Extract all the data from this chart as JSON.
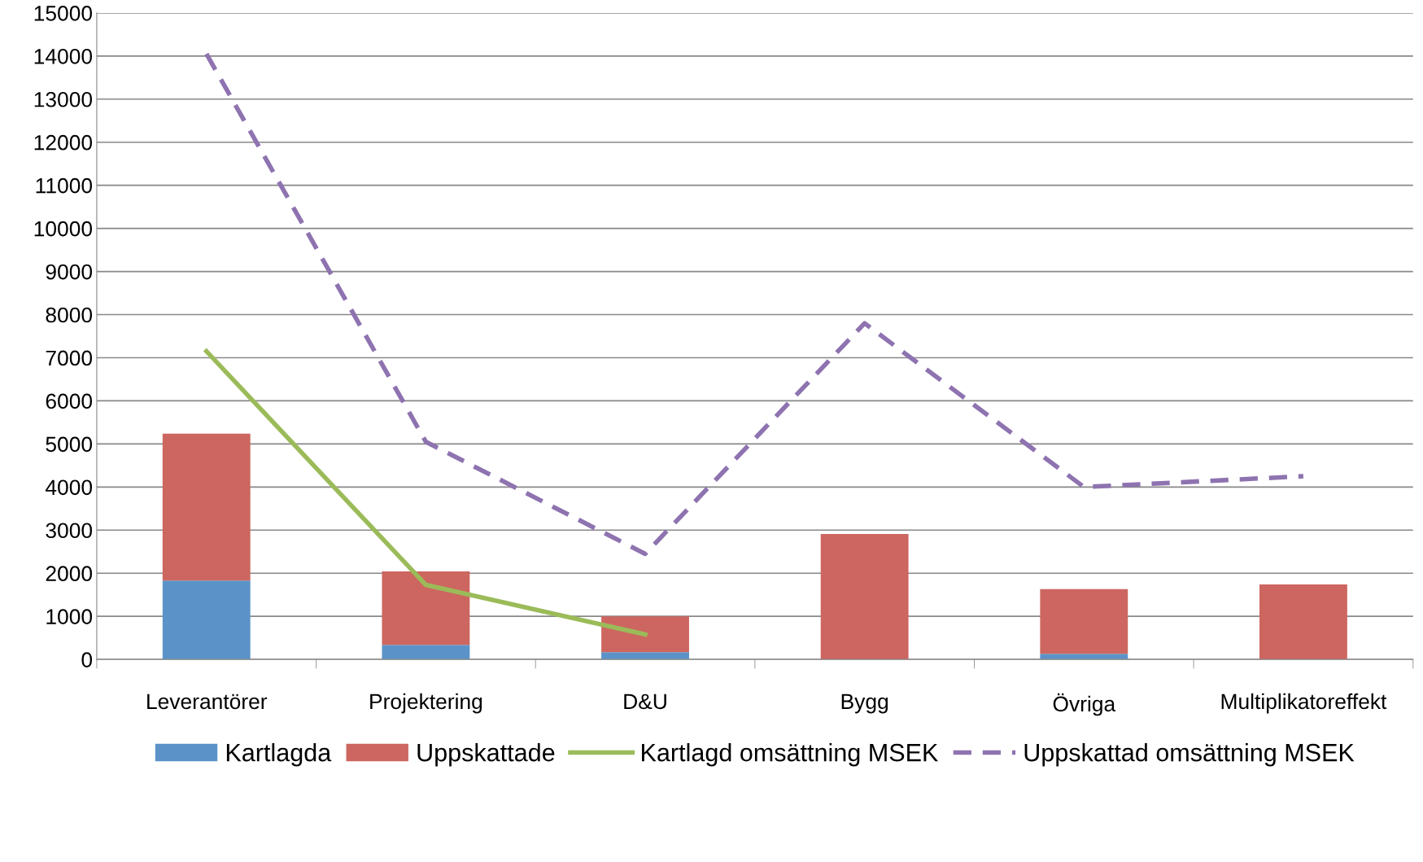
{
  "chart_data": {
    "type": "bar",
    "stacked": true,
    "categories": [
      "Leverantörer",
      "Projektering",
      "D&U",
      "Bygg",
      "Övriga",
      "Multiplikatoreffekt"
    ],
    "series": [
      {
        "name": "Kartlagda",
        "color": "#5b93c8",
        "values": [
          1830,
          340,
          170,
          0,
          130,
          0
        ]
      },
      {
        "name": "Uppskattade",
        "color": "#cd6660",
        "values": [
          3410,
          1700,
          830,
          2910,
          1500,
          1740
        ]
      },
      {
        "name": "Kartlagd omsättning MSEK",
        "type": "line",
        "color": "#9bbb59",
        "line_style": "solid",
        "values": [
          7150,
          1730,
          580,
          null,
          null,
          null
        ]
      },
      {
        "name": "Uppskattad omsättning MSEK",
        "type": "line",
        "color": "#8e73b0",
        "line_style": "dashed",
        "values": [
          14050,
          5050,
          2450,
          7800,
          4000,
          4250
        ]
      }
    ],
    "ylim": [
      0,
      15000
    ],
    "yticks": [
      0,
      1000,
      2000,
      3000,
      4000,
      5000,
      6000,
      7000,
      8000,
      9000,
      10000,
      11000,
      12000,
      13000,
      14000,
      15000
    ],
    "grid": "y",
    "legend": "bottom",
    "marker": "none"
  }
}
